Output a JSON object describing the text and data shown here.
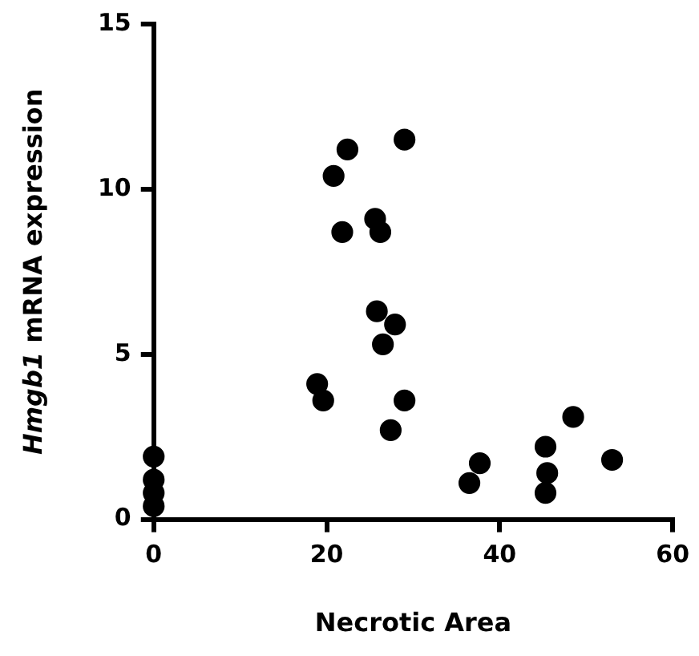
{
  "chart_data": {
    "type": "scatter",
    "xlabel": "Necrotic Area",
    "ylabel": "Hmgb1 mRNA expression",
    "x": [
      0,
      0,
      0,
      0,
      18.9,
      19.6,
      20.8,
      21.8,
      22.4,
      25.6,
      25.8,
      26.2,
      26.5,
      27.4,
      27.9,
      29.0,
      29.0,
      36.5,
      37.7,
      45.3,
      45.3,
      45.5,
      48.5,
      53.0
    ],
    "values": [
      1.9,
      1.2,
      0.8,
      0.4,
      4.1,
      3.6,
      10.4,
      8.7,
      11.2,
      9.1,
      6.3,
      8.7,
      5.3,
      2.7,
      5.9,
      11.5,
      3.6,
      1.1,
      1.7,
      2.2,
      0.8,
      1.4,
      3.1,
      1.8
    ],
    "color": "#000000",
    "marker": "circle",
    "grid": false,
    "legend": false,
    "xlim": [
      0,
      60
    ],
    "xticks": [
      0,
      20,
      40,
      60
    ],
    "ylim": [
      0,
      15
    ],
    "yticks": [
      0,
      5,
      10,
      15
    ]
  }
}
